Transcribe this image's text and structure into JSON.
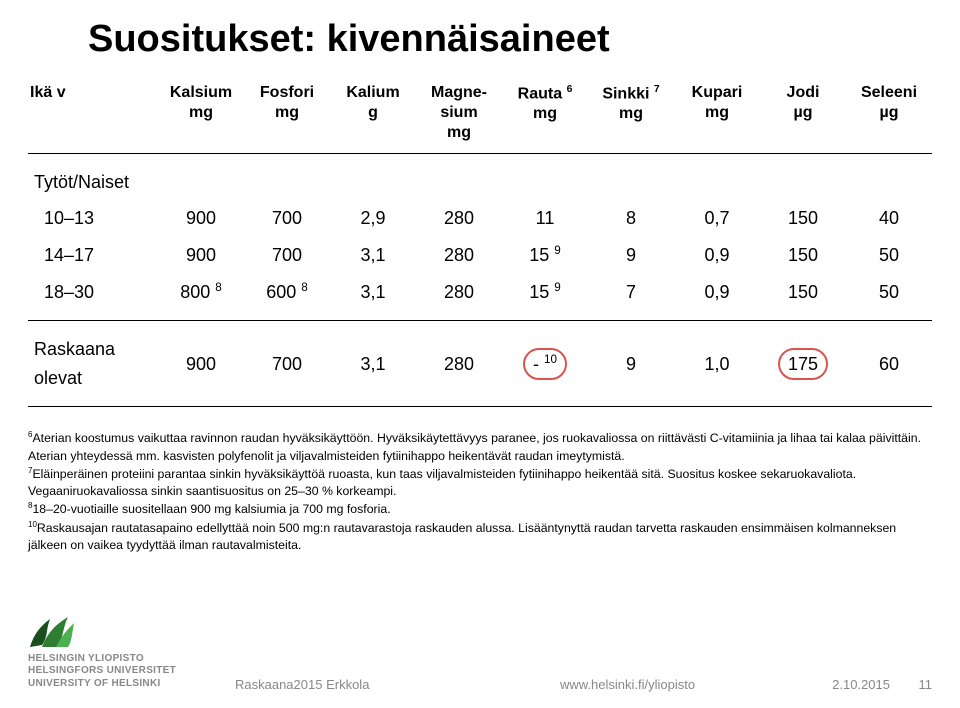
{
  "title": "Suositukset: kivennäisaineet",
  "columns": [
    {
      "label": "Ikä v",
      "unit": ""
    },
    {
      "label": "Kalsium",
      "unit": "mg"
    },
    {
      "label": "Fosfori",
      "unit": "mg"
    },
    {
      "label": "Kalium",
      "unit": "g"
    },
    {
      "label": "Magne-\nsium",
      "unit": "mg"
    },
    {
      "label": "Rauta",
      "sup": "6",
      "unit": "mg"
    },
    {
      "label": "Sinkki",
      "sup": "7",
      "unit": "mg"
    },
    {
      "label": "Kupari",
      "unit": "mg"
    },
    {
      "label": "Jodi",
      "unit": "µg"
    },
    {
      "label": "Seleeni",
      "unit": "µg"
    }
  ],
  "group1_label": "Tytöt/Naiset",
  "rows_group1": [
    {
      "age": "10–13",
      "cells": [
        "900",
        "700",
        "2,9",
        "280",
        "11",
        "8",
        "0,7",
        "150",
        "40"
      ]
    },
    {
      "age": "14–17",
      "cells": [
        "900",
        "700",
        "3,1",
        "280",
        {
          "text": "15",
          "sup": "9"
        },
        "9",
        "0,9",
        "150",
        "50"
      ]
    },
    {
      "age": "18–30",
      "cells": [
        {
          "text": "800",
          "sup": "8"
        },
        {
          "text": "600",
          "sup": "8"
        },
        "3,1",
        "280",
        {
          "text": "15",
          "sup": "9"
        },
        "7",
        "0,9",
        "150",
        "50"
      ]
    }
  ],
  "group2_label": "Raskaana olevat",
  "row_group2": {
    "cells": [
      "900",
      "700",
      "3,1",
      "280",
      {
        "text": "-",
        "sup": "10",
        "circle": true
      },
      "9",
      "1,0",
      {
        "text": "175",
        "circle": true
      },
      "60"
    ]
  },
  "circle_color": "#d9534f",
  "footnote6": "6Aterian koostumus vaikuttaa ravinnon raudan hyväksikäyttöön. Hyväksikäytettävyys paranee, jos ruokavaliossa on riittävästi C-vitamiinia ja lihaa tai kalaa päivittäin. Aterian yhteydessä mm. kasvisten polyfenolit ja viljavalmisteiden fytiinihappo heikentävät raudan imeytymistä.",
  "footnote7": "7Eläinperäinen proteiini parantaa sinkin hyväksikäyttöä ruoasta, kun taas viljavalmisteiden fytiinihappo heikentää sitä. Suositus koskee sekaruokavaliota. Vegaaniruokavaliossa sinkin saantisuositus on 25–30 % korkeampi.",
  "footnote8": "818–20-vuotiaille suositellaan 900 mg kalsiumia ja 700 mg fosforia.",
  "footnote10": "10Raskausajan rautatasapaino edellyttää noin 500 mg:n rautavarastoja raskauden alussa. Lisääntynyttä raudan tarvetta raskauden ensimmäisen kolmanneksen jälkeen on vaikea tyydyttää ilman rautavalmisteita.",
  "logo_lines": [
    "HELSINGIN YLIOPISTO",
    "HELSINGFORS UNIVERSITET",
    "UNIVERSITY OF HELSINKI"
  ],
  "footer_source": "Raskaana2015 Erkkola",
  "footer_site": "www.helsinki.fi/yliopisto",
  "footer_date": "2.10.2015",
  "footer_page": "11",
  "colors": {
    "text": "#000000",
    "footer_gray": "#888888",
    "flame_green": "#2e7d32",
    "flame_dark": "#194f1c"
  }
}
